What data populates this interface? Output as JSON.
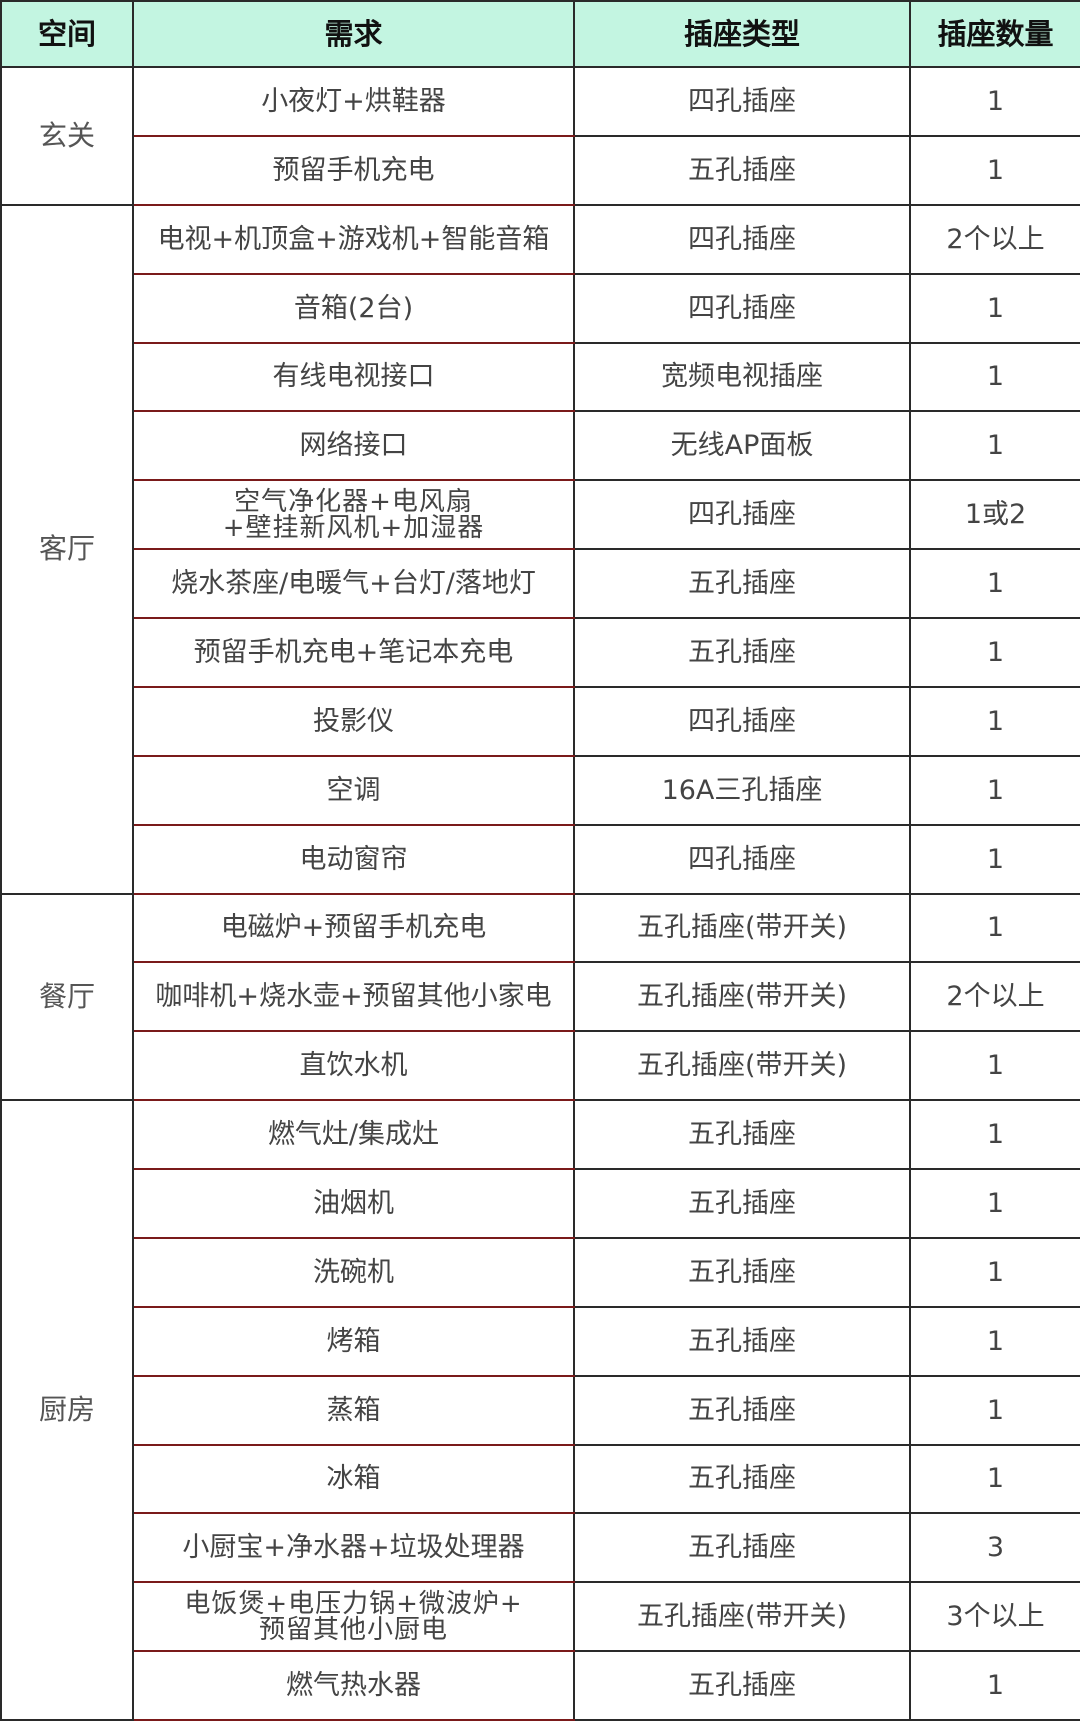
{
  "headers": [
    "空间",
    "需求",
    "插座类型",
    "插座数量"
  ],
  "groups": [
    {
      "space": "玄关",
      "rows": [
        {
          "need": "小夜灯+烘鞋器",
          "type": "四孔插座",
          "count": "1"
        },
        {
          "need": "预留手机充电",
          "type": "五孔插座",
          "count": "1"
        }
      ]
    },
    {
      "space": "客厅",
      "rows": [
        {
          "need": "电视+机顶盒+游戏机+智能音箱",
          "type": "四孔插座",
          "count": "2个以上"
        },
        {
          "need": "音箱(2台)",
          "type": "四孔插座",
          "count": "1"
        },
        {
          "need": "有线电视接口",
          "type": "宽频电视插座",
          "count": "1"
        },
        {
          "need": "网络接口",
          "type": "无线AP面板",
          "count": "1"
        },
        {
          "need": "空气净化器+电风扇\n+壁挂新风机+加湿器",
          "type": "四孔插座",
          "count": "1或2"
        },
        {
          "need": "烧水茶座/电暖气+台灯/落地灯",
          "type": "五孔插座",
          "count": "1"
        },
        {
          "need": "预留手机充电+笔记本充电",
          "type": "五孔插座",
          "count": "1"
        },
        {
          "need": "投影仪",
          "type": "四孔插座",
          "count": "1"
        },
        {
          "need": "空调",
          "type": "16A三孔插座",
          "count": "1"
        },
        {
          "need": "电动窗帘",
          "type": "四孔插座",
          "count": "1"
        }
      ]
    },
    {
      "space": "餐厅",
      "rows": [
        {
          "need": "电磁炉+预留手机充电",
          "type": "五孔插座(带开关)",
          "count": "1"
        },
        {
          "need": "咖啡机+烧水壶+预留其他小家电",
          "type": "五孔插座(带开关)",
          "count": "2个以上"
        },
        {
          "need": "直饮水机",
          "type": "五孔插座(带开关)",
          "count": "1"
        }
      ]
    },
    {
      "space": "厨房",
      "rows": [
        {
          "need": "燃气灶/集成灶",
          "type": "五孔插座",
          "count": "1"
        },
        {
          "need": "油烟机",
          "type": "五孔插座",
          "count": "1"
        },
        {
          "need": "洗碗机",
          "type": "五孔插座",
          "count": "1"
        },
        {
          "need": "烤箱",
          "type": "五孔插座",
          "count": "1"
        },
        {
          "need": "蒸箱",
          "type": "五孔插座",
          "count": "1"
        },
        {
          "need": "冰箱",
          "type": "五孔插座",
          "count": "1"
        },
        {
          "need": "小厨宝+净水器+垃圾处理器",
          "type": "五孔插座",
          "count": "3"
        },
        {
          "need": "电饭煲+电压力锅+微波炉+\n预留其他小厨电",
          "type": "五孔插座(带开关)",
          "count": "3个以上"
        },
        {
          "need": "燃气热水器",
          "type": "五孔插座",
          "count": "1"
        }
      ]
    }
  ]
}
